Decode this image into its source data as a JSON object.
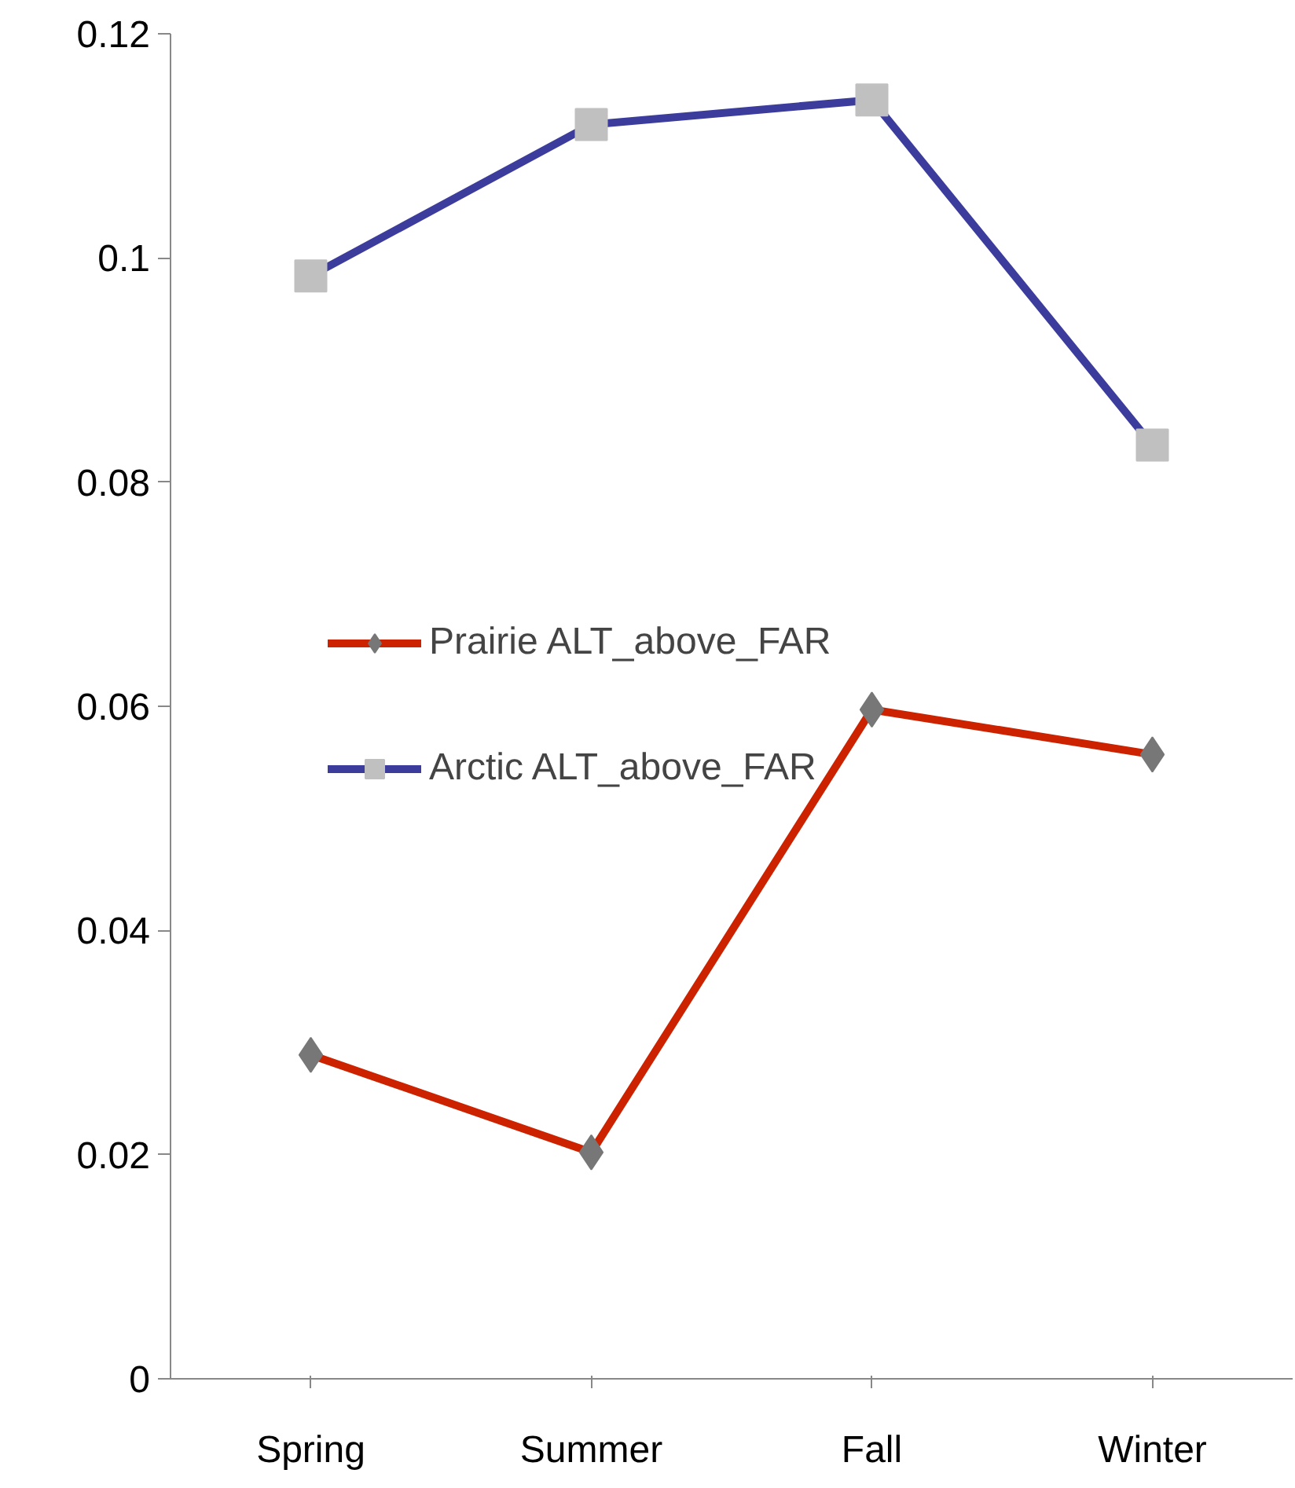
{
  "chart_data": {
    "type": "line",
    "categories": [
      "Spring",
      "Summer",
      "Fall",
      "Winter"
    ],
    "series": [
      {
        "name": "Prairie ALT_above_FAR",
        "color": "#cc2200",
        "marker": "diamond",
        "values": [
          0.0289,
          0.0202,
          0.0597,
          0.0557
        ]
      },
      {
        "name": "Arctic ALT_above_FAR",
        "color": "#3c3c9c",
        "marker": "square",
        "values": [
          0.0984,
          0.1119,
          0.1141,
          0.0833
        ]
      }
    ],
    "ylim": [
      0,
      0.12
    ],
    "yticks": [
      0,
      0.02,
      0.04,
      0.06,
      0.08,
      0.1,
      0.12
    ],
    "grid": false,
    "legend": "left",
    "line_style": "solid"
  }
}
